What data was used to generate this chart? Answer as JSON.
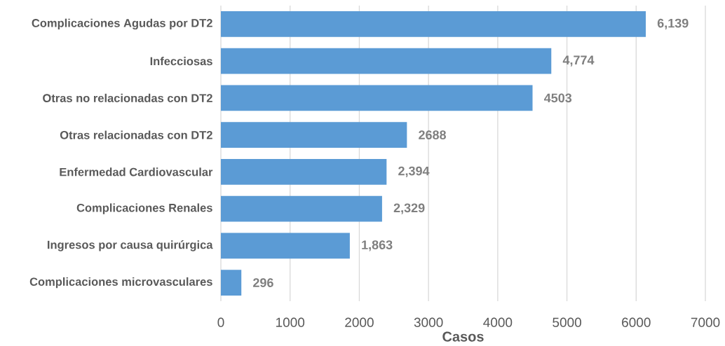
{
  "chart_data": {
    "type": "bar",
    "orientation": "horizontal",
    "xlabel": "Casos",
    "categories": [
      "Complicaciones Agudas por DT2",
      "Infecciosas",
      "Otras no relacionadas con DT2",
      "Otras relacionadas con DT2",
      "Enfermedad Cardiovascular",
      "Complicaciones Renales",
      "Ingresos por causa quirúrgica",
      "Complicaciones microvasculares"
    ],
    "values": [
      6139,
      4774,
      4503,
      2688,
      2394,
      2329,
      1863,
      296
    ],
    "value_labels": [
      "6,139",
      "4,774",
      "4503",
      "2688",
      "2,394",
      "2,329",
      "1,863",
      "296"
    ],
    "color": "#5b9bd5",
    "xlim": [
      0,
      7000
    ],
    "xticks": [
      0,
      1000,
      2000,
      3000,
      4000,
      5000,
      6000,
      7000
    ],
    "grid": "x"
  }
}
